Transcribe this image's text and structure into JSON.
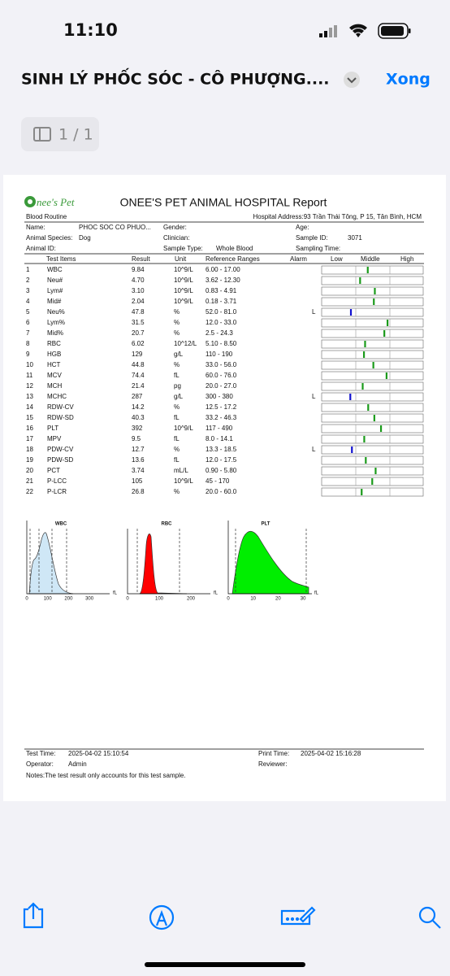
{
  "status_bar": {
    "time": "11:10"
  },
  "nav": {
    "title": "SINH LÝ PHỐC SÓC - CÔ PHƯỢNG....",
    "done": "Xong"
  },
  "page_indicator": "1 / 1",
  "report": {
    "logo": "nee's Pet",
    "subtitle": "Blood Routine",
    "title": "ONEE'S PET ANIMAL HOSPITAL Report",
    "address": "Hospital Address:93 Trần Thái Tông, P 15, Tân Bình, HCM",
    "info": {
      "name_label": "Name:",
      "name": "PHOC SOC CO PHUO...",
      "gender_label": "Gender:",
      "age_label": "Age:",
      "species_label": "Animal Species:",
      "species": "Dog",
      "clinician_label": "Clinician:",
      "sample_id_label": "Sample ID:",
      "sample_id": "3071",
      "animal_id_label": "Animal ID:",
      "sample_type_label": "Sample Type:",
      "sample_type": "Whole Blood",
      "sampling_time_label": "Sampling Time:"
    },
    "table": {
      "header": [
        "Test Items",
        "Result",
        "Unit",
        "Reference Ranges",
        "Alarm",
        "Low",
        "Middle",
        "High"
      ],
      "rows": [
        {
          "no": "1",
          "item": "WBC",
          "result": "9.84",
          "unit": "10^9/L",
          "range": "6.00 - 17.00"
        },
        {
          "no": "2",
          "item": "Neu#",
          "result": "4.70",
          "unit": "10^9/L",
          "range": "3.62 - 12.30"
        },
        {
          "no": "3",
          "item": "Lym#",
          "result": "3.10",
          "unit": "10^9/L",
          "range": "0.83 - 4.91"
        },
        {
          "no": "4",
          "item": "Mid#",
          "result": "2.04",
          "unit": "10^9/L",
          "range": "0.18 - 3.71"
        },
        {
          "no": "5",
          "item": "Neu%",
          "result": "47.8",
          "unit": "%",
          "range": "52.0 - 81.0",
          "alarm": "L"
        },
        {
          "no": "6",
          "item": "Lym%",
          "result": "31.5",
          "unit": "%",
          "range": "12.0 - 33.0"
        },
        {
          "no": "7",
          "item": "Mid%",
          "result": "20.7",
          "unit": "%",
          "range": "2.5 - 24.3"
        },
        {
          "no": "8",
          "item": "RBC",
          "result": "6.02",
          "unit": "10^12/L",
          "range": "5.10 - 8.50"
        },
        {
          "no": "9",
          "item": "HGB",
          "result": "129",
          "unit": "g/L",
          "range": "110 - 190"
        },
        {
          "no": "10",
          "item": "HCT",
          "result": "44.8",
          "unit": "%",
          "range": "33.0 - 56.0"
        },
        {
          "no": "11",
          "item": "MCV",
          "result": "74.4",
          "unit": "fL",
          "range": "60.0 - 76.0"
        },
        {
          "no": "12",
          "item": "MCH",
          "result": "21.4",
          "unit": "pg",
          "range": "20.0 - 27.0"
        },
        {
          "no": "13",
          "item": "MCHC",
          "result": "287",
          "unit": "g/L",
          "range": "300 - 380",
          "alarm": "L"
        },
        {
          "no": "14",
          "item": "RDW-CV",
          "result": "14.2",
          "unit": "%",
          "range": "12.5 - 17.2"
        },
        {
          "no": "15",
          "item": "RDW-SD",
          "result": "40.3",
          "unit": "fL",
          "range": "33.2 - 46.3"
        },
        {
          "no": "16",
          "item": "PLT",
          "result": "392",
          "unit": "10^9/L",
          "range": "117 - 490"
        },
        {
          "no": "17",
          "item": "MPV",
          "result": "9.5",
          "unit": "fL",
          "range": "8.0 - 14.1"
        },
        {
          "no": "18",
          "item": "PDW-CV",
          "result": "12.7",
          "unit": "%",
          "range": "13.3 - 18.5",
          "alarm": "L"
        },
        {
          "no": "19",
          "item": "PDW-SD",
          "result": "13.6",
          "unit": "fL",
          "range": "12.0 - 17.5"
        },
        {
          "no": "20",
          "item": "PCT",
          "result": "3.74",
          "unit": "mL/L",
          "range": "0.90 - 5.80"
        },
        {
          "no": "21",
          "item": "P-LCC",
          "result": "105",
          "unit": "10^9/L",
          "range": "45 - 170"
        },
        {
          "no": "22",
          "item": "P-LCR",
          "result": "26.8",
          "unit": "%",
          "range": "20.0 - 60.0"
        }
      ]
    },
    "histograms": [
      {
        "title": "WBC",
        "ticks": [
          "0",
          "100",
          "200",
          "300"
        ],
        "unit": "fL"
      },
      {
        "title": "RBC",
        "ticks": [
          "0",
          "100",
          "200"
        ],
        "unit": "fL"
      },
      {
        "title": "PLT",
        "ticks": [
          "0",
          "10",
          "20",
          "30"
        ],
        "unit": "fL"
      }
    ],
    "footer": {
      "test_time_label": "Test Time:",
      "test_time": "2025-04-02 15:10:54",
      "print_time_label": "Print Time:",
      "print_time": "2025-04-02 15:16:28",
      "operator_label": "Operator:",
      "operator": "Admin",
      "reviewer_label": "Reviewer:",
      "notes": "Notes:The test result only accounts for this test sample."
    }
  }
}
